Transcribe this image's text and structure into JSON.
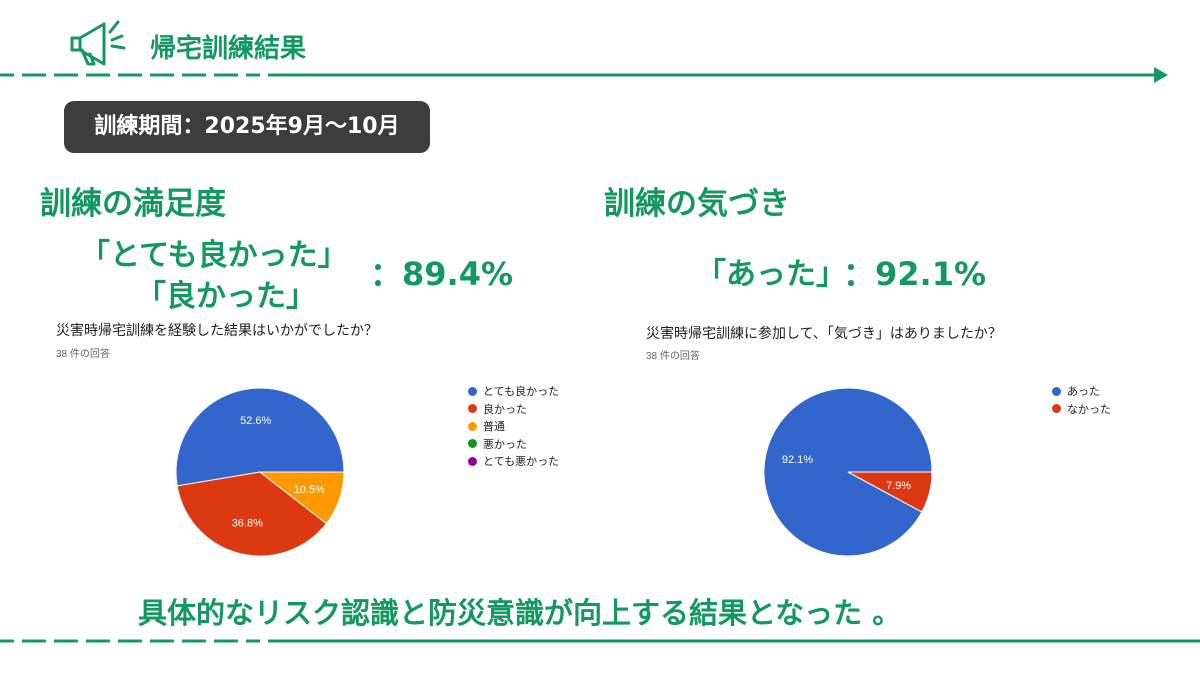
{
  "header": {
    "title": "帰宅訓練結果",
    "icon": "megaphone-icon",
    "accent_color": "#139863"
  },
  "period": "訓練期間：2025年9月～10月",
  "left": {
    "title": "訓練の満足度",
    "quote_line1": "「とても良かった」",
    "quote_line2": "「良かった」",
    "percent": "：89.4%"
  },
  "right": {
    "title": "訓練の気づき",
    "quote": "「あった」",
    "percent": "：92.1%"
  },
  "chart_data": [
    {
      "type": "pie",
      "title": "災害時帰宅訓練を経験した結果はいかがでしたか？",
      "subtitle": "38 件の回答",
      "categories": [
        "とても良かった",
        "良かった",
        "普通",
        "悪かった",
        "とても悪かった"
      ],
      "values": [
        52.6,
        36.8,
        10.5,
        0,
        0
      ],
      "labels": [
        "52.6%",
        "36.8%",
        "10.5%",
        "",
        ""
      ],
      "colors": [
        "#3366cc",
        "#dc3912",
        "#ff9900",
        "#109618",
        "#990099"
      ],
      "legend_position": "right"
    },
    {
      "type": "pie",
      "title": "災害時帰宅訓練に参加して、「気づき」はありましたか？",
      "subtitle": "38 件の回答",
      "categories": [
        "あった",
        "なかった"
      ],
      "values": [
        92.1,
        7.9
      ],
      "labels": [
        "92.1%",
        "7.9%"
      ],
      "colors": [
        "#3366cc",
        "#dc3912"
      ],
      "legend_position": "right"
    }
  ],
  "conclusion": "具体的なリスク認識と防災意識が向上する結果となった 。"
}
